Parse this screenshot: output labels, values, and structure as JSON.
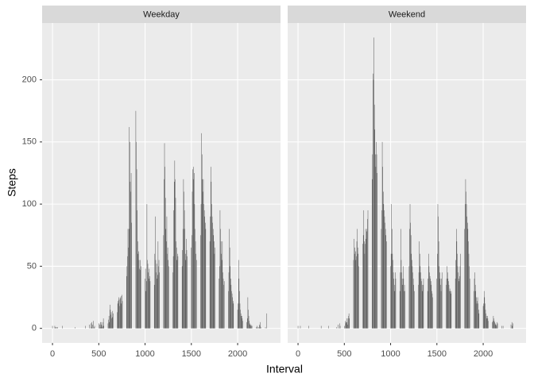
{
  "chart_data": {
    "type": "bar",
    "x_label": "Interval",
    "y_label": "Steps",
    "color": "#595959",
    "grid": true,
    "xlim": [
      -112,
      2463
    ],
    "xticks": [
      0,
      500,
      1000,
      1500,
      2000
    ],
    "ylim": [
      -11.7,
      245.7
    ],
    "yticks": [
      0,
      50,
      100,
      150,
      200
    ],
    "x": [
      0,
      5,
      10,
      15,
      20,
      25,
      30,
      35,
      40,
      45,
      50,
      55,
      100,
      105,
      110,
      115,
      120,
      125,
      130,
      135,
      140,
      145,
      150,
      155,
      200,
      205,
      210,
      215,
      220,
      225,
      230,
      235,
      240,
      245,
      250,
      255,
      300,
      305,
      310,
      315,
      320,
      325,
      330,
      335,
      340,
      345,
      350,
      355,
      400,
      405,
      410,
      415,
      420,
      425,
      430,
      435,
      440,
      445,
      450,
      455,
      500,
      505,
      510,
      515,
      520,
      525,
      530,
      535,
      540,
      545,
      550,
      555,
      600,
      605,
      610,
      615,
      620,
      625,
      630,
      635,
      640,
      645,
      650,
      655,
      700,
      705,
      710,
      715,
      720,
      725,
      730,
      735,
      740,
      745,
      750,
      755,
      800,
      805,
      810,
      815,
      820,
      825,
      830,
      835,
      840,
      845,
      850,
      855,
      900,
      905,
      910,
      915,
      920,
      925,
      930,
      935,
      940,
      945,
      950,
      955,
      1000,
      1005,
      1010,
      1015,
      1020,
      1025,
      1030,
      1035,
      1040,
      1045,
      1050,
      1055,
      1100,
      1105,
      1110,
      1115,
      1120,
      1125,
      1130,
      1135,
      1140,
      1145,
      1150,
      1155,
      1200,
      1205,
      1210,
      1215,
      1220,
      1225,
      1230,
      1235,
      1240,
      1245,
      1250,
      1255,
      1300,
      1305,
      1310,
      1315,
      1320,
      1325,
      1330,
      1335,
      1340,
      1345,
      1350,
      1355,
      1400,
      1405,
      1410,
      1415,
      1420,
      1425,
      1430,
      1435,
      1440,
      1445,
      1450,
      1455,
      1500,
      1505,
      1510,
      1515,
      1520,
      1525,
      1530,
      1535,
      1540,
      1545,
      1550,
      1555,
      1600,
      1605,
      1610,
      1615,
      1620,
      1625,
      1630,
      1635,
      1640,
      1645,
      1650,
      1655,
      1700,
      1705,
      1710,
      1715,
      1720,
      1725,
      1730,
      1735,
      1740,
      1745,
      1750,
      1755,
      1800,
      1805,
      1810,
      1815,
      1820,
      1825,
      1830,
      1835,
      1840,
      1845,
      1850,
      1855,
      1900,
      1905,
      1910,
      1915,
      1920,
      1925,
      1930,
      1935,
      1940,
      1945,
      1950,
      1955,
      2000,
      2005,
      2010,
      2015,
      2020,
      2025,
      2030,
      2035,
      2040,
      2045,
      2050,
      2055,
      2100,
      2105,
      2110,
      2115,
      2120,
      2125,
      2130,
      2135,
      2140,
      2145,
      2150,
      2155,
      2200,
      2205,
      2210,
      2215,
      2220,
      2225,
      2230,
      2235,
      2240,
      2245,
      2250,
      2255,
      2300,
      2305,
      2310,
      2315,
      2320,
      2325,
      2330,
      2335,
      2340,
      2345,
      2350,
      2355
    ],
    "series": [
      {
        "name": "Weekday",
        "values": [
          2,
          0,
          0,
          0,
          0,
          2,
          1,
          1,
          0,
          1,
          0,
          1,
          0,
          2,
          0,
          0,
          0,
          0,
          0,
          0,
          0,
          0,
          0,
          0,
          0,
          0,
          0,
          0,
          0,
          0,
          0,
          0,
          0,
          1,
          0,
          0,
          0,
          0,
          0,
          0,
          0,
          0,
          0,
          0,
          0,
          0,
          0,
          2,
          3,
          0,
          0,
          4,
          1,
          5,
          0,
          3,
          6,
          0,
          1,
          2,
          4,
          0,
          3,
          1,
          5,
          5,
          3,
          1,
          2,
          5,
          8,
          2,
          4,
          7,
          10,
          5,
          19,
          15,
          11,
          13,
          8,
          9,
          14,
          12,
          13,
          20,
          22,
          25,
          23,
          18,
          24,
          25,
          20,
          26,
          27,
          22,
          42,
          50,
          58,
          80,
          65,
          80,
          162,
          150,
          118,
          110,
          125,
          85,
          175,
          150,
          128,
          95,
          70,
          60,
          62,
          55,
          48,
          47,
          55,
          50,
          40,
          48,
          30,
          38,
          100,
          55,
          52,
          45,
          40,
          48,
          42,
          38,
          35,
          60,
          90,
          55,
          45,
          52,
          40,
          43,
          70,
          50,
          55,
          45,
          75,
          120,
          149,
          130,
          105,
          80,
          70,
          90,
          60,
          65,
          55,
          50,
          45,
          58,
          95,
          118,
          135,
          120,
          105,
          70,
          65,
          55,
          60,
          58,
          50,
          63,
          80,
          120,
          110,
          95,
          80,
          60,
          55,
          72,
          63,
          58,
          65,
          75,
          110,
          128,
          120,
          130,
          125,
          100,
          80,
          70,
          60,
          55,
          75,
          100,
          157,
          140,
          120,
          110,
          120,
          100,
          95,
          90,
          85,
          80,
          70,
          90,
          130,
          118,
          100,
          90,
          85,
          80,
          75,
          70,
          60,
          65,
          40,
          50,
          95,
          80,
          70,
          60,
          55,
          70,
          45,
          40,
          35,
          38,
          30,
          45,
          80,
          65,
          50,
          40,
          35,
          30,
          28,
          25,
          22,
          20,
          15,
          20,
          55,
          40,
          30,
          20,
          15,
          12,
          10,
          10,
          8,
          6,
          5,
          8,
          25,
          15,
          10,
          6,
          4,
          3,
          2,
          3,
          2,
          2,
          1,
          0,
          2,
          1,
          0,
          0,
          1,
          3,
          2,
          5,
          1,
          0,
          1,
          0,
          0,
          12,
          0,
          0,
          0,
          0,
          0,
          0,
          0,
          0
        ]
      },
      {
        "name": "Weekend",
        "values": [
          2,
          0,
          0,
          0,
          0,
          2,
          0,
          0,
          0,
          0,
          0,
          0,
          0,
          0,
          0,
          2,
          0,
          0,
          0,
          0,
          0,
          0,
          0,
          0,
          0,
          0,
          0,
          0,
          0,
          0,
          0,
          0,
          0,
          0,
          2,
          0,
          0,
          0,
          0,
          0,
          0,
          0,
          2,
          0,
          0,
          0,
          0,
          0,
          0,
          0,
          0,
          1,
          0,
          0,
          0,
          3,
          0,
          0,
          4,
          2,
          2,
          0,
          6,
          4,
          5,
          8,
          5,
          3,
          8,
          10,
          12,
          8,
          55,
          72,
          60,
          65,
          62,
          55,
          58,
          70,
          80,
          65,
          60,
          50,
          68,
          75,
          95,
          70,
          60,
          68,
          80,
          72,
          78,
          80,
          88,
          95,
          120,
          140,
          205,
          200,
          234,
          180,
          160,
          140,
          130,
          150,
          140,
          125,
          80,
          95,
          150,
          130,
          110,
          100,
          95,
          90,
          85,
          80,
          75,
          70,
          50,
          60,
          100,
          80,
          60,
          55,
          45,
          40,
          35,
          30,
          45,
          40,
          30,
          45,
          80,
          55,
          45,
          40,
          35,
          50,
          40,
          30,
          35,
          30,
          50,
          80,
          100,
          85,
          75,
          60,
          55,
          50,
          45,
          40,
          35,
          30,
          35,
          45,
          70,
          60,
          50,
          45,
          40,
          38,
          35,
          30,
          35,
          40,
          30,
          40,
          60,
          50,
          45,
          42,
          40,
          38,
          35,
          30,
          28,
          25,
          40,
          60,
          100,
          90,
          70,
          50,
          45,
          40,
          35,
          30,
          40,
          45,
          35,
          40,
          50,
          45,
          40,
          38,
          35,
          30,
          32,
          30,
          28,
          30,
          40,
          55,
          80,
          70,
          60,
          50,
          45,
          40,
          38,
          42,
          50,
          60,
          80,
          100,
          120,
          110,
          100,
          90,
          85,
          80,
          70,
          60,
          50,
          40,
          30,
          40,
          45,
          35,
          30,
          25,
          20,
          22,
          25,
          20,
          15,
          12,
          18,
          20,
          30,
          25,
          20,
          15,
          12,
          10,
          8,
          10,
          8,
          6,
          5,
          6,
          10,
          8,
          6,
          5,
          4,
          3,
          2,
          3,
          5,
          4,
          2,
          0,
          0,
          2,
          0,
          0,
          0,
          0,
          0,
          0,
          0,
          0,
          3,
          0,
          5,
          2,
          4,
          0,
          0,
          0,
          0,
          0,
          0,
          0
        ]
      }
    ]
  }
}
